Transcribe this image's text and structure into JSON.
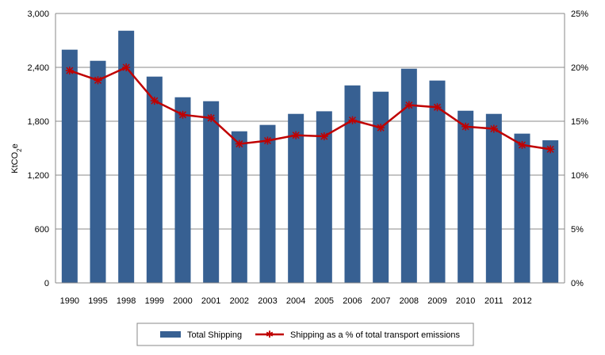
{
  "chart_data": {
    "type": "bar+line",
    "categories": [
      "1990",
      "1995",
      "1998",
      "1999",
      "2000",
      "2001",
      "2002",
      "2003",
      "2004",
      "2005",
      "2006",
      "2007",
      "2008",
      "2009",
      "2010",
      "2011",
      "2012",
      ""
    ],
    "ylabel": "KtCO2e",
    "ylabel_main": "KtCO",
    "ylabel_sub": "2",
    "ylabel_end": "e",
    "ylim": [
      0,
      3000
    ],
    "yticks": [
      "0",
      "600",
      "1,200",
      "1,800",
      "2,400",
      "3,000"
    ],
    "y2lim": [
      0,
      25
    ],
    "y2ticks": [
      "0%",
      "5%",
      "10%",
      "15%",
      "20%",
      "25%"
    ],
    "grid": true,
    "legend_position": "bottom",
    "series": [
      {
        "name": "Total Shipping",
        "type": "bar",
        "color": "#376092",
        "values": [
          2597,
          2473,
          2808,
          2297,
          2067,
          2023,
          1688,
          1759,
          1882,
          1911,
          2199,
          2129,
          2385,
          2253,
          1917,
          1882,
          1662,
          1588
        ]
      },
      {
        "name": "Shipping as a % of total transport emissions",
        "type": "line",
        "axis": "right",
        "color": "#c00000",
        "marker": "star",
        "values": [
          19.7,
          18.8,
          20.0,
          16.9,
          15.6,
          15.3,
          12.9,
          13.2,
          13.7,
          13.6,
          15.1,
          14.4,
          16.5,
          16.3,
          14.5,
          14.3,
          12.8,
          12.4
        ]
      }
    ]
  }
}
